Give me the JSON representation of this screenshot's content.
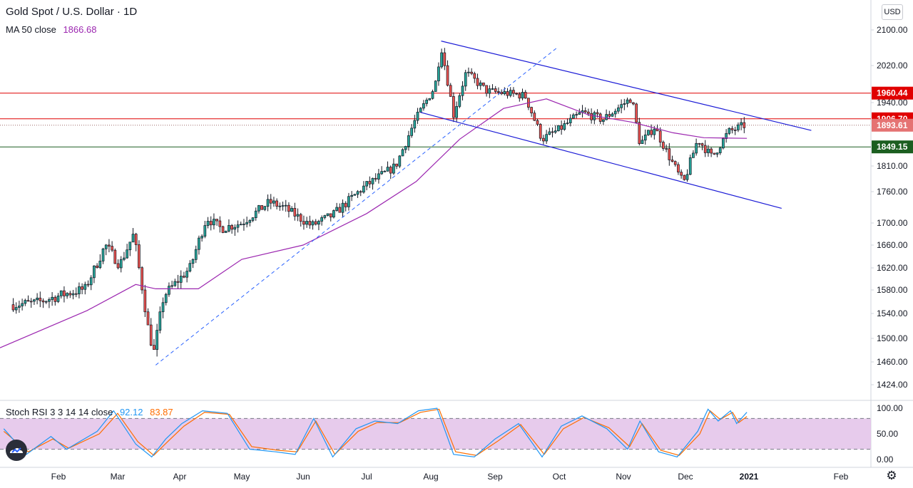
{
  "header": {
    "symbol_title": "Gold Spot / U.S. Dollar · 1D",
    "ma_label": "MA 50 close",
    "ma_value": "1866.68",
    "stoch_label": "Stoch RSI 3 3 14 14 close",
    "stoch_k_value": "92.12",
    "stoch_d_value": "83.87",
    "currency": "USD"
  },
  "colors": {
    "up": "#26a69a",
    "down": "#ef5350",
    "candle_body": "#131722",
    "ma": "#9c27b0",
    "channel": "#1a1ad6",
    "trendline": "#2962ff",
    "resistance": "#e00000",
    "support": "#1b5e20",
    "stoch_k": "#2196f3",
    "stoch_d": "#ff6d00",
    "stoch_band": "#e1bee7",
    "last_price": "#e57373"
  },
  "icons": {
    "logo": "tradingview-logo-icon",
    "settings": "gear-icon"
  },
  "chart_data": {
    "type": "candlestick",
    "title": "Gold Spot / U.S. Dollar · 1D",
    "y_axis": {
      "min": 1400,
      "max": 2140,
      "ticks": [
        "2100.00",
        "2020.00",
        "1940.00",
        "1810.00",
        "1760.00",
        "1700.00",
        "1660.00",
        "1620.00",
        "1580.00",
        "1540.00",
        "1500.00",
        "1460.00",
        "1424.00"
      ]
    },
    "x_axis": {
      "ticks": [
        "Feb",
        "Mar",
        "Apr",
        "May",
        "Jun",
        "Jul",
        "Aug",
        "Sep",
        "Oct",
        "Nov",
        "Dec",
        "2021",
        "Feb"
      ]
    },
    "price_labels": [
      {
        "name": "resistance-1960",
        "value": 1960.44,
        "label": "1960.44"
      },
      {
        "name": "resistance-1906",
        "value": 1906.7,
        "label": "1906.70"
      },
      {
        "name": "last-price",
        "value": 1893.61,
        "label": "1893.61"
      },
      {
        "name": "support-1849",
        "value": 1849.15,
        "label": "1849.15"
      }
    ],
    "close_path": [
      [
        "2020-01-08",
        1555
      ],
      [
        "2020-01-20",
        1558
      ],
      [
        "2020-02-03",
        1572
      ],
      [
        "2020-02-14",
        1582
      ],
      [
        "2020-02-24",
        1660
      ],
      [
        "2020-03-02",
        1625
      ],
      [
        "2020-03-09",
        1680
      ],
      [
        "2020-03-16",
        1520
      ],
      [
        "2020-03-19",
        1475
      ],
      [
        "2020-03-24",
        1570
      ],
      [
        "2020-04-06",
        1620
      ],
      [
        "2020-04-14",
        1710
      ],
      [
        "2020-04-21",
        1690
      ],
      [
        "2020-05-01",
        1700
      ],
      [
        "2020-05-15",
        1740
      ],
      [
        "2020-05-22",
        1730
      ],
      [
        "2020-06-05",
        1695
      ],
      [
        "2020-06-15",
        1715
      ],
      [
        "2020-06-30",
        1770
      ],
      [
        "2020-07-15",
        1810
      ],
      [
        "2020-07-24",
        1900
      ],
      [
        "2020-08-03",
        1975
      ],
      [
        "2020-08-06",
        2062
      ],
      [
        "2020-08-12",
        1915
      ],
      [
        "2020-08-18",
        2005
      ],
      [
        "2020-08-28",
        1965
      ],
      [
        "2020-09-15",
        1955
      ],
      [
        "2020-09-23",
        1865
      ],
      [
        "2020-10-01",
        1885
      ],
      [
        "2020-10-12",
        1920
      ],
      [
        "2020-10-22",
        1905
      ],
      [
        "2020-11-05",
        1950
      ],
      [
        "2020-11-09",
        1855
      ],
      [
        "2020-11-16",
        1890
      ],
      [
        "2020-11-23",
        1830
      ],
      [
        "2020-11-30",
        1775
      ],
      [
        "2020-12-07",
        1865
      ],
      [
        "2020-12-14",
        1828
      ],
      [
        "2020-12-22",
        1880
      ],
      [
        "2020-12-30",
        1893.61
      ]
    ],
    "series": [
      {
        "name": "MA 50 close",
        "last_value": 1866.68,
        "points": [
          [
            "2020-01-01",
            1484
          ],
          [
            "2020-02-15",
            1545
          ],
          [
            "2020-03-10",
            1590
          ],
          [
            "2020-03-20",
            1582
          ],
          [
            "2020-04-10",
            1582
          ],
          [
            "2020-05-01",
            1635
          ],
          [
            "2020-06-01",
            1660
          ],
          [
            "2020-07-01",
            1718
          ],
          [
            "2020-07-25",
            1780
          ],
          [
            "2020-08-15",
            1865
          ],
          [
            "2020-09-05",
            1928
          ],
          [
            "2020-09-25",
            1948
          ],
          [
            "2020-10-15",
            1915
          ],
          [
            "2020-11-05",
            1900
          ],
          [
            "2020-11-25",
            1878
          ],
          [
            "2020-12-10",
            1868
          ],
          [
            "2020-12-31",
            1866.68
          ]
        ]
      }
    ],
    "channel": {
      "upper": [
        [
          "2020-08-06",
          2075
        ],
        [
          "2021-01-22",
          1883
        ]
      ],
      "lower": [
        [
          "2020-07-27",
          1920
        ],
        [
          "2021-01-12",
          1728
        ]
      ]
    },
    "trendline": [
      [
        "2020-03-20",
        1455
      ],
      [
        "2020-09-30",
        2060
      ]
    ],
    "stoch_rsi": {
      "range": [
        0,
        100
      ],
      "ticks": [
        "100.00",
        "50.00",
        "0.00"
      ],
      "upper_band": 80,
      "lower_band": 20,
      "k_last": 92.12,
      "d_last": 83.87,
      "k": [
        [
          "2020-01-03",
          60
        ],
        [
          "2020-01-15",
          10
        ],
        [
          "2020-01-28",
          45
        ],
        [
          "2020-02-05",
          20
        ],
        [
          "2020-02-20",
          55
        ],
        [
          "2020-02-28",
          95
        ],
        [
          "2020-03-10",
          30
        ],
        [
          "2020-03-18",
          5
        ],
        [
          "2020-03-25",
          40
        ],
        [
          "2020-04-02",
          70
        ],
        [
          "2020-04-12",
          95
        ],
        [
          "2020-04-24",
          90
        ],
        [
          "2020-05-05",
          20
        ],
        [
          "2020-05-18",
          15
        ],
        [
          "2020-05-28",
          10
        ],
        [
          "2020-06-06",
          80
        ],
        [
          "2020-06-15",
          5
        ],
        [
          "2020-06-26",
          60
        ],
        [
          "2020-07-05",
          75
        ],
        [
          "2020-07-16",
          70
        ],
        [
          "2020-07-26",
          95
        ],
        [
          "2020-08-04",
          100
        ],
        [
          "2020-08-12",
          10
        ],
        [
          "2020-08-22",
          5
        ],
        [
          "2020-09-01",
          40
        ],
        [
          "2020-09-12",
          70
        ],
        [
          "2020-09-23",
          5
        ],
        [
          "2020-10-02",
          65
        ],
        [
          "2020-10-12",
          85
        ],
        [
          "2020-10-24",
          60
        ],
        [
          "2020-11-03",
          20
        ],
        [
          "2020-11-09",
          75
        ],
        [
          "2020-11-18",
          15
        ],
        [
          "2020-11-27",
          5
        ],
        [
          "2020-12-07",
          55
        ],
        [
          "2020-12-12",
          98
        ],
        [
          "2020-12-17",
          75
        ],
        [
          "2020-12-23",
          95
        ],
        [
          "2020-12-26",
          70
        ],
        [
          "2020-12-31",
          92.12
        ]
      ],
      "d": [
        [
          "2020-01-03",
          55
        ],
        [
          "2020-01-16",
          15
        ],
        [
          "2020-01-29",
          40
        ],
        [
          "2020-02-06",
          22
        ],
        [
          "2020-02-21",
          50
        ],
        [
          "2020-03-01",
          90
        ],
        [
          "2020-03-11",
          35
        ],
        [
          "2020-03-19",
          8
        ],
        [
          "2020-03-26",
          35
        ],
        [
          "2020-04-03",
          65
        ],
        [
          "2020-04-13",
          92
        ],
        [
          "2020-04-25",
          88
        ],
        [
          "2020-05-06",
          25
        ],
        [
          "2020-05-19",
          18
        ],
        [
          "2020-05-29",
          15
        ],
        [
          "2020-06-07",
          75
        ],
        [
          "2020-06-16",
          10
        ],
        [
          "2020-06-27",
          55
        ],
        [
          "2020-07-06",
          72
        ],
        [
          "2020-07-17",
          72
        ],
        [
          "2020-07-27",
          92
        ],
        [
          "2020-08-05",
          98
        ],
        [
          "2020-08-13",
          15
        ],
        [
          "2020-08-23",
          8
        ],
        [
          "2020-09-02",
          35
        ],
        [
          "2020-09-13",
          68
        ],
        [
          "2020-09-24",
          10
        ],
        [
          "2020-10-03",
          60
        ],
        [
          "2020-10-13",
          82
        ],
        [
          "2020-10-25",
          62
        ],
        [
          "2020-11-04",
          25
        ],
        [
          "2020-11-10",
          70
        ],
        [
          "2020-11-19",
          18
        ],
        [
          "2020-11-28",
          8
        ],
        [
          "2020-12-08",
          50
        ],
        [
          "2020-12-13",
          95
        ],
        [
          "2020-12-18",
          78
        ],
        [
          "2020-12-24",
          92
        ],
        [
          "2020-12-27",
          72
        ],
        [
          "2020-12-31",
          83.87
        ]
      ]
    }
  }
}
